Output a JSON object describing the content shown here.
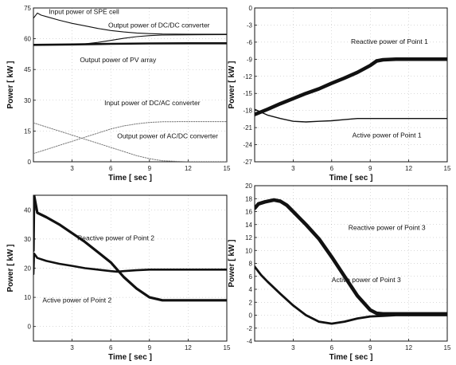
{
  "chart_data": [
    {
      "type": "line",
      "xlabel": "Time [ sec ]",
      "ylabel": "Power [ kW ]",
      "xlim": [
        0,
        15
      ],
      "ylim": [
        0,
        75
      ],
      "xticks": [
        3,
        6,
        9,
        12,
        15
      ],
      "yticks": [
        0,
        15,
        30,
        45,
        60,
        75
      ],
      "grid": true,
      "series": [
        {
          "name": "Input power of SPE cell",
          "color": "#111111",
          "width": 1.1,
          "x": [
            0,
            0.3,
            0.6,
            1,
            2,
            3,
            4,
            5,
            6,
            7,
            8,
            9,
            10,
            12,
            15
          ],
          "y": [
            70,
            72.5,
            71.5,
            70.8,
            69,
            67.5,
            66.3,
            65,
            64,
            63.3,
            62.8,
            62.5,
            62.3,
            62.2,
            62.2
          ]
        },
        {
          "name": "Output power of DC/DC converter",
          "color": "#111111",
          "width": 1.1,
          "x": [
            0,
            1,
            2,
            3,
            4,
            5,
            6,
            7,
            8,
            9,
            10,
            12,
            15
          ],
          "y": [
            57,
            57,
            57.2,
            57.3,
            57.5,
            58.2,
            59.2,
            60.2,
            61,
            61.5,
            61.8,
            61.9,
            62
          ]
        },
        {
          "name": "Output power of PV array",
          "color": "#111111",
          "width": 2.6,
          "x": [
            0,
            3,
            6,
            9,
            12,
            15
          ],
          "y": [
            57,
            57.2,
            57.5,
            57.7,
            57.8,
            57.8
          ]
        },
        {
          "name": "Input power of DC/AC converter",
          "color": "#777777",
          "width": 1,
          "dash": "1.5 1.5",
          "x": [
            0,
            1,
            2,
            3,
            4,
            5,
            6,
            7,
            8,
            9,
            10,
            12,
            15
          ],
          "y": [
            4,
            6,
            8,
            10,
            12,
            14,
            16,
            17.5,
            18.5,
            19.2,
            19.5,
            19.6,
            19.6
          ]
        },
        {
          "name": "Output power of AC/DC converter",
          "color": "#777777",
          "width": 1,
          "dash": "1.5 1.5",
          "x": [
            0,
            1,
            2,
            3,
            4,
            5,
            6,
            7,
            8,
            9,
            10,
            12,
            15
          ],
          "y": [
            19,
            17,
            15,
            13,
            11,
            9,
            7,
            5,
            3,
            1.5,
            0.5,
            0,
            0
          ]
        }
      ],
      "annotations": [
        {
          "text": "Input power of SPE cell",
          "x": 1.2,
          "y": 72
        },
        {
          "text": "Output power of DC/DC converter",
          "x": 5.8,
          "y": 65.5
        },
        {
          "text": "Output power of PV array",
          "x": 3.6,
          "y": 48.5
        },
        {
          "text": "Input power of DC/AC converter",
          "x": 5.5,
          "y": 27.5
        },
        {
          "text": "Output power of AC/DC converter",
          "x": 6.5,
          "y": 11.5
        }
      ]
    },
    {
      "type": "line",
      "xlabel": "Time [ sec ]",
      "ylabel": "Power [ kW ]",
      "xlim": [
        0,
        15
      ],
      "ylim": [
        -27,
        0
      ],
      "xticks": [
        3,
        6,
        9,
        12,
        15
      ],
      "yticks": [
        0,
        -3,
        -6,
        -9,
        -12,
        -15,
        -18,
        -21,
        -24,
        -27
      ],
      "grid": true,
      "series": [
        {
          "name": "Reactive power of Point 1",
          "color": "#111111",
          "width": 4.5,
          "x": [
            0,
            1,
            2,
            3,
            4,
            5,
            6,
            7,
            8,
            9,
            9.5,
            10,
            11,
            12,
            13,
            15
          ],
          "y": [
            -18.7,
            -17.8,
            -16.8,
            -15.9,
            -15,
            -14.2,
            -13.2,
            -12.3,
            -11.3,
            -10.1,
            -9.3,
            -9.1,
            -9.0,
            -9.0,
            -9.0,
            -9.0
          ]
        },
        {
          "name": "Active power of Point 1",
          "color": "#111111",
          "width": 1.4,
          "x": [
            0,
            1,
            2,
            3,
            4,
            5,
            6,
            7,
            8,
            9,
            10,
            12,
            15
          ],
          "y": [
            -17.8,
            -18.8,
            -19.4,
            -19.9,
            -20.0,
            -19.9,
            -19.8,
            -19.6,
            -19.4,
            -19.4,
            -19.4,
            -19.4,
            -19.4
          ]
        }
      ],
      "annotations": [
        {
          "text": "Reactive power of Point 1",
          "x": 7.5,
          "y": -6.3
        },
        {
          "text": "Active power of Point 1",
          "x": 7.6,
          "y": -22.7
        }
      ]
    },
    {
      "type": "line",
      "xlabel": "Time [ sec ]",
      "ylabel": "Power [ kW ]",
      "xlim": [
        0,
        15
      ],
      "ylim": [
        -5,
        45
      ],
      "xticks": [
        3,
        6,
        9,
        12,
        15
      ],
      "yticks": [
        0,
        10,
        20,
        30,
        40
      ],
      "grid": true,
      "series": [
        {
          "name": "Reactive power of Point 2",
          "color": "#111111",
          "width": 3.2,
          "x": [
            0,
            0.05,
            0.3,
            1,
            2,
            3,
            4,
            5,
            6,
            7,
            8,
            9,
            10,
            11,
            12,
            15
          ],
          "y": [
            26,
            45,
            39,
            37.5,
            35,
            32,
            29,
            25.5,
            22,
            17,
            13,
            10,
            9,
            9,
            9,
            9
          ]
        },
        {
          "name": "Active power of Point 2",
          "color": "#111111",
          "width": 2.6,
          "x": [
            0,
            0.05,
            0.3,
            1,
            2,
            3,
            4,
            5,
            6,
            6.5,
            7,
            8,
            9,
            10,
            12,
            15
          ],
          "y": [
            18,
            25,
            23.5,
            22.5,
            21.5,
            20.8,
            20,
            19.5,
            19,
            18.8,
            19,
            19.3,
            19.5,
            19.5,
            19.5,
            19.5
          ]
        }
      ],
      "annotations": [
        {
          "text": "Reactive power of Point 2",
          "x": 3.4,
          "y": 29.5
        },
        {
          "text": "Active power of Point 2",
          "x": 0.7,
          "y": 8.2
        }
      ]
    },
    {
      "type": "line",
      "xlabel": "Time [ sec ]",
      "ylabel": "Power [ kW ]",
      "xlim": [
        0,
        15
      ],
      "ylim": [
        -4,
        20
      ],
      "xticks": [
        3,
        6,
        9,
        12,
        15
      ],
      "yticks": [
        20,
        18,
        16,
        14,
        12,
        10,
        8,
        6,
        4,
        2,
        0,
        -2,
        -4
      ],
      "grid": true,
      "series": [
        {
          "name": "Reactive power of Point 3",
          "color": "#111111",
          "width": 4.5,
          "x": [
            0,
            0.3,
            0.8,
            1.5,
            2,
            2.5,
            3,
            4,
            5,
            6,
            7,
            8,
            9,
            9.5,
            10,
            11,
            12,
            15
          ],
          "y": [
            16.5,
            17.2,
            17.5,
            17.8,
            17.6,
            17.0,
            16.0,
            14.0,
            11.8,
            9.0,
            6.0,
            3.0,
            0.8,
            0.3,
            0.2,
            0.2,
            0.2,
            0.2
          ]
        },
        {
          "name": "Active power of Point 3",
          "color": "#111111",
          "width": 2.8,
          "x": [
            0,
            0.5,
            1,
            2,
            3,
            4,
            5,
            6,
            7,
            8,
            9,
            10,
            11,
            12,
            15
          ],
          "y": [
            7.5,
            6.2,
            5.2,
            3.3,
            1.5,
            0,
            -1,
            -1.3,
            -1.0,
            -0.5,
            -0.2,
            -0.1,
            0,
            0,
            0
          ]
        }
      ],
      "annotations": [
        {
          "text": "Reactive power of Point 3",
          "x": 7.3,
          "y": 13.2
        },
        {
          "text": "Active power of Point 3",
          "x": 6.0,
          "y": 5.1
        }
      ]
    }
  ]
}
